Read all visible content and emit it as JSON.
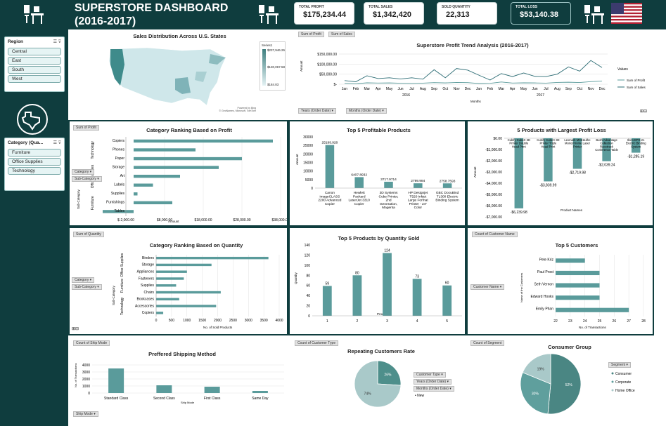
{
  "header": {
    "title_line1": "SUPERSTORE DASHBOARD",
    "title_line2": "(2016-2017)",
    "kpis": [
      {
        "label": "TOTAL PROFIT",
        "value": "$175,234.44"
      },
      {
        "label": "TOTAL SALES",
        "value": "$1,342,420"
      },
      {
        "label": "SOLD QUANTITY",
        "value": "22,313"
      },
      {
        "label": "TOTAL LOSS",
        "value": "$53,140.38"
      }
    ]
  },
  "sidebar": {
    "region_slicer": {
      "title": "Region",
      "items": [
        "Central",
        "East",
        "South",
        "West"
      ]
    },
    "category_slicer": {
      "title": "Category (Qua...",
      "items": [
        "Furniture",
        "Office Supplies",
        "Technology"
      ]
    }
  },
  "colors": {
    "teal": "#5a9b9b",
    "dark": "#0f3d3e",
    "pie_light": "#a9c9c9"
  },
  "map": {
    "title": "Sales Distribution Across U.S. States",
    "legend_title": "Series1",
    "legend_values": [
      "$237,946.26",
      "$130,067.58",
      "$184.83"
    ],
    "credit": "Powered by Bing\n© GeoNames, Microsoft, TomTom"
  },
  "trend": {
    "filters": [
      "Sum of Profit",
      "Sum of Sales"
    ],
    "bottom_filters": [
      "Years (Order Date)",
      "Months (Order Date)"
    ],
    "legend_title": "Values",
    "axis_label": "Amount",
    "x_axis_title": "Months"
  },
  "panel_filters": {
    "profit_rank": "Sum of Profit",
    "quantity_rank": "Sum of Quantity",
    "customer_names": "Count of Customer Name",
    "customer_name_btn": "Customer Name",
    "ship_mode_count": "Count of Ship Mode",
    "ship_mode_btn": "Ship Mode",
    "customer_type_count": "Count of Customer Type",
    "segment_count": "Count of Segment",
    "category_btn": "Category",
    "subcategory_btn": "Sub-Category",
    "customer_type_btn": "Customer Type",
    "years_btn": "Years (Order Date)",
    "months_btn": "Months (Order Date)",
    "segment_btn": "Segment"
  },
  "chart_data": [
    {
      "type": "line",
      "title": "Superstore Profit Trend Analysis (2016-2017)",
      "x": [
        "Jan",
        "Feb",
        "Mar",
        "Apr",
        "May",
        "Jun",
        "Jul",
        "Aug",
        "Sep",
        "Oct",
        "Nov",
        "Dec",
        "Jan",
        "Feb",
        "Mar",
        "Apr",
        "May",
        "Jun",
        "Jul",
        "Aug",
        "Sep",
        "Oct",
        "Nov",
        "Dec"
      ],
      "year_labels": [
        "2016",
        "2017"
      ],
      "ylabel": "Amount",
      "yticks": [
        "$150,000.00",
        "$100,000.00",
        "$50,000.00",
        "$-"
      ],
      "ylim": [
        0,
        150000
      ],
      "series": [
        {
          "name": "Sum of Profit",
          "values": [
            4000,
            2500,
            7000,
            6000,
            6500,
            5000,
            4000,
            5500,
            8000,
            6500,
            9000,
            8000,
            3500,
            4500,
            11000,
            6000,
            7000,
            6500,
            5500,
            9000,
            10000,
            8500,
            13000,
            15500
          ]
        },
        {
          "name": "Sum of Sales",
          "values": [
            18000,
            12000,
            42000,
            28000,
            32000,
            26000,
            32000,
            25000,
            72000,
            32000,
            78000,
            70000,
            45000,
            21000,
            53000,
            38000,
            56000,
            39000,
            38000,
            50000,
            86000,
            65000,
            118000,
            83000
          ]
        }
      ]
    },
    {
      "type": "bar",
      "title": "Category Ranking Based on Profit",
      "orientation": "horizontal",
      "categories": [
        "Copiers",
        "Phones",
        "Paper",
        "Storage",
        "Art",
        "Labels",
        "Supplies",
        "Furnishings",
        "Tables"
      ],
      "groups": [
        "Technology",
        "Office Supplies",
        "Furniture"
      ],
      "values": [
        36000,
        16000,
        28000,
        22000,
        12000,
        5000,
        1000,
        10000,
        -8000
      ],
      "xticks": [
        "$-2,000.00",
        "$8,000.00",
        "$18,000.00",
        "$28,000.00",
        "$38,000.00"
      ],
      "xlabel": "Amount",
      "ylabel": "Sub-Category"
    },
    {
      "type": "bar",
      "title": "Top 5 Profitable Products",
      "categories": [
        "Canon imageCLASS 2200 Advanced Copier",
        "Hewlett Packard LaserJet 3310 Copier",
        "3D Systems Cube Printer, 2nd Generation, Magenta",
        "HP Designjet T520 Inkjet Large Format Printer - 24\" Color",
        "GBC DocuBind TL300 Electric Binding System"
      ],
      "values": [
        25199.928,
        6407.8932,
        3717.9714,
        2799.984,
        2758.7593
      ],
      "value_labels": [
        "25199.928",
        "6407.8932",
        "3717.9714",
        "2799.984",
        "2758.7593"
      ],
      "yticks": [
        "30000",
        "25000",
        "20000",
        "15000",
        "10000",
        "5000",
        "0"
      ],
      "ylim": [
        0,
        30000
      ],
      "ylabel": "Amount"
    },
    {
      "type": "bar",
      "title": "5 Products with Largest Profit Loss",
      "categories": [
        "Cubify CubeX 3D Printer Double Head Print",
        "Cubify CubeX 3D Printer Triple Head Print",
        "Lexmark MX611dhe Monochrome Laser Printer",
        "Bush Advantage Collection Racetrack Conference Table",
        "Ibico EPK-21 Electric Binding System"
      ],
      "values": [
        -6239.98,
        -3839.99,
        -2719.98,
        -2039.24,
        -1285.19
      ],
      "value_labels": [
        "-$6,239.98",
        "-$3,839.99",
        "-$2,719.98",
        "-$2,039.24",
        "-$1,285.19"
      ],
      "yticks": [
        "$0.00",
        "-$1,000.00",
        "-$2,000.00",
        "-$3,000.00",
        "-$4,000.00",
        "-$5,000.00",
        "-$6,000.00",
        "-$7,000.00"
      ],
      "ylim": [
        -7000,
        0
      ],
      "ylabel": "Amount",
      "xlabel": "Product Names"
    },
    {
      "type": "bar",
      "title": "Category Ranking Based on Quantity",
      "orientation": "horizontal",
      "categories": [
        "Binders",
        "Storage",
        "Appliances",
        "Fasteners",
        "Supplies",
        "Chairs",
        "Bookcases",
        "Accessories",
        "Copiers"
      ],
      "groups": [
        "Office Supplies",
        "Furniture",
        "Technology"
      ],
      "values": [
        3650,
        1800,
        1000,
        900,
        650,
        2100,
        750,
        1950,
        230
      ],
      "xticks": [
        "0",
        "500",
        "1000",
        "1500",
        "2000",
        "2500",
        "3000",
        "3500",
        "4000"
      ],
      "xlabel": "No. of Sold Products",
      "ylabel": "Sub-Category"
    },
    {
      "type": "bar",
      "title": "Top 5 Products by Quantity Sold",
      "categories": [
        "1",
        "2",
        "3",
        "4",
        "5"
      ],
      "values": [
        59,
        80,
        124,
        73,
        60
      ],
      "yticks": [
        "140",
        "120",
        "100",
        "80",
        "60",
        "40",
        "20",
        "0"
      ],
      "ylim": [
        0,
        140
      ],
      "ylabel": "Quantity",
      "xlabel": "Products"
    },
    {
      "type": "bar",
      "title": "Top 5 Customers",
      "orientation": "horizontal",
      "categories": [
        "Pete Kriz",
        "Paul Prost",
        "Seth Vernon",
        "Edward Hooks",
        "Emily Phan"
      ],
      "values": [
        24,
        25,
        25,
        25,
        27
      ],
      "xticks": [
        "22",
        "23",
        "24",
        "25",
        "26",
        "27",
        "28"
      ],
      "xlim": [
        22,
        28
      ],
      "xlabel": "No. of Transactions",
      "ylabel": "Name of the Customers"
    },
    {
      "type": "bar",
      "title": "Preffered Shipping Method",
      "categories": [
        "Standard Class",
        "Second Class",
        "First Class",
        "Same Day"
      ],
      "values": [
        3500,
        1100,
        900,
        300
      ],
      "yticks": [
        "4000",
        "3000",
        "2000",
        "1000",
        "0"
      ],
      "ylim": [
        0,
        4000
      ],
      "ylabel": "No. of Transactions",
      "xlabel": "Ship Mode"
    },
    {
      "type": "pie",
      "title": "Repeating Customers Rate",
      "labels": [
        "",
        "New"
      ],
      "values": [
        26,
        74
      ],
      "value_labels": [
        "26%",
        "74%"
      ],
      "legend": [
        "New"
      ]
    },
    {
      "type": "pie",
      "title": "Consumer Group",
      "labels": [
        "Consumer",
        "Corporate",
        "Home Office"
      ],
      "values": [
        52,
        30,
        19
      ],
      "value_labels": [
        "52%",
        "30%",
        "19%"
      ],
      "legend_title": "Segment"
    }
  ]
}
